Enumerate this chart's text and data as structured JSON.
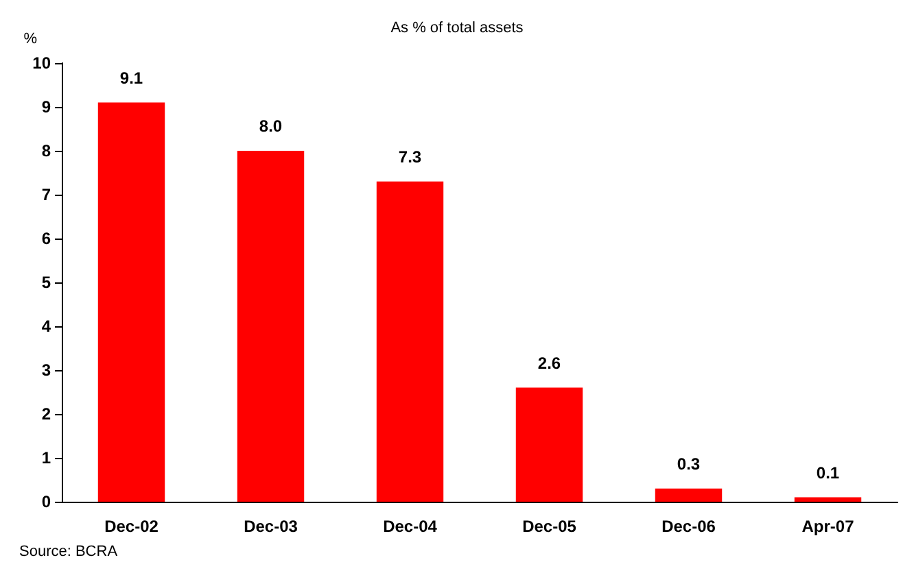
{
  "chart_data": {
    "type": "bar",
    "title": "As % of total assets",
    "ylabel": "%",
    "categories": [
      "Dec-02",
      "Dec-03",
      "Dec-04",
      "Dec-05",
      "Dec-06",
      "Apr-07"
    ],
    "values": [
      9.1,
      8.0,
      7.3,
      2.6,
      0.3,
      0.1
    ],
    "color": "#ff0000",
    "ylim": [
      0,
      10
    ],
    "yticks": [
      0,
      1,
      2,
      3,
      4,
      5,
      6,
      7,
      8,
      9,
      10
    ],
    "grid": false,
    "value_labels": [
      "9.1",
      "8.0",
      "7.3",
      "2.6",
      "0.3",
      "0.1"
    ],
    "annotations": [
      "Source: BCRA"
    ]
  }
}
